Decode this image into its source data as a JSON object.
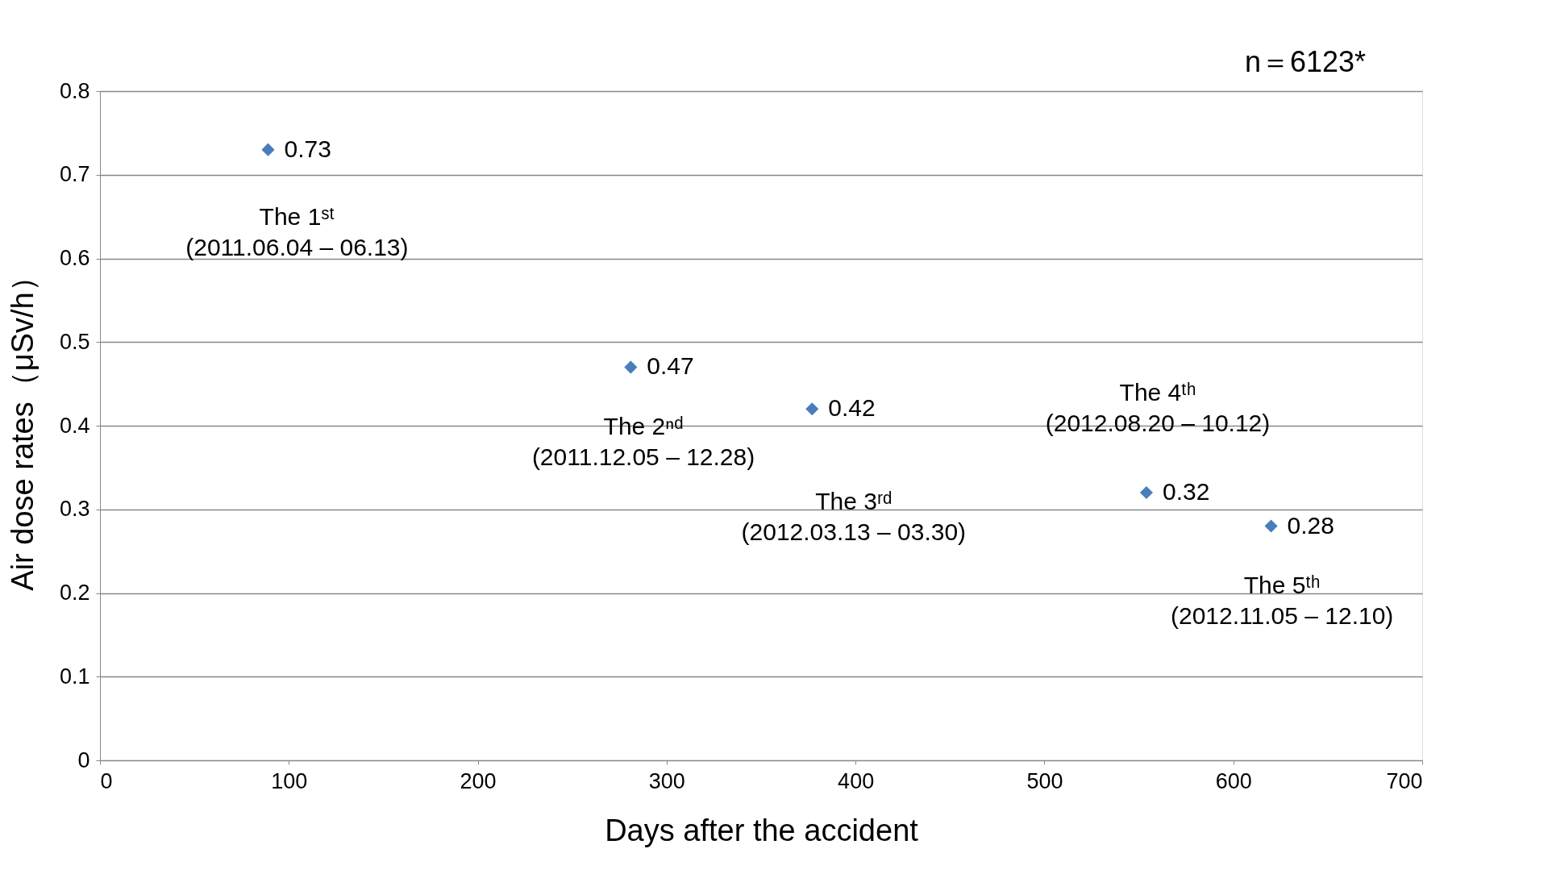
{
  "chart_data": {
    "type": "scatter",
    "xlabel": "Days after the accident",
    "ylabel": "Air dose rates（μSv/h）",
    "x": [
      89,
      281,
      377,
      554,
      620
    ],
    "values": [
      0.73,
      0.47,
      0.42,
      0.32,
      0.28
    ],
    "color": "#4a7ebb",
    "marker": "diamond",
    "data_labels": true,
    "xlim": [
      0,
      700
    ],
    "xticks": [
      0,
      100,
      200,
      300,
      400,
      500,
      600,
      700
    ],
    "ylim": [
      0,
      0.8
    ],
    "yticks": [
      0,
      0.1,
      0.2,
      0.3,
      0.4,
      0.5,
      0.6,
      0.7,
      0.8
    ],
    "grid": "y",
    "annotations": [
      "The 1ˢᵗ\n(2011.06.04 – 06.13)",
      "The 2ⁿᵈ\n(2011.12.05 – 12.28)",
      "The 3ʳᵈ\n(2012.03.13 – 03.30)",
      "The 4ᵗʰ\n(2012.08.20 – 10.12)",
      "The 5ᵗʰ\n(2012.11.05 – 12.10)",
      "n＝6123*"
    ]
  }
}
